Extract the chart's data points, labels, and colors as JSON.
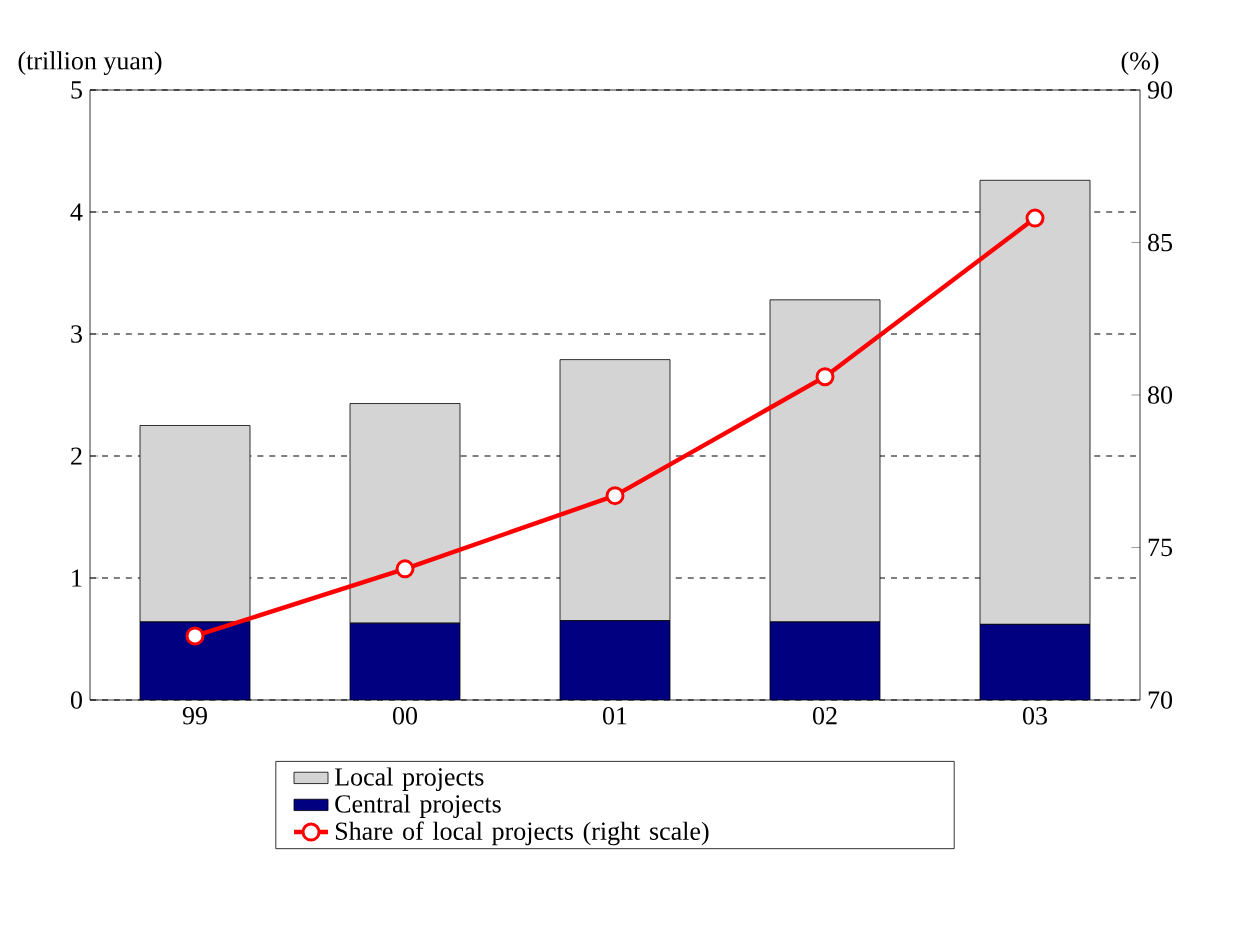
{
  "chart_data": {
    "type": "bar",
    "stacked": true,
    "ylabel": "(trillion yuan)",
    "y2label": "(%)",
    "categories": [
      "99",
      "00",
      "01",
      "02",
      "03"
    ],
    "series": [
      {
        "name": "Central projects",
        "color": "#000080",
        "values": [
          0.64,
          0.63,
          0.65,
          0.64,
          0.62
        ]
      },
      {
        "name": "Local projects",
        "color": "#d4d4d4",
        "values": [
          1.61,
          1.8,
          2.14,
          2.64,
          3.64
        ]
      },
      {
        "name": "Share of local projects (right scale)",
        "type": "line",
        "axis": "y2",
        "color": "#ff0000",
        "marker": "circle",
        "values": [
          72.1,
          74.3,
          76.7,
          80.6,
          85.8
        ]
      }
    ],
    "ylim": [
      0,
      5
    ],
    "yticks": [
      0,
      1,
      2,
      3,
      4,
      5
    ],
    "y2lim": [
      70,
      90
    ],
    "y2ticks": [
      70,
      75,
      80,
      85,
      90
    ],
    "grid": "y",
    "legend": "bottom"
  }
}
